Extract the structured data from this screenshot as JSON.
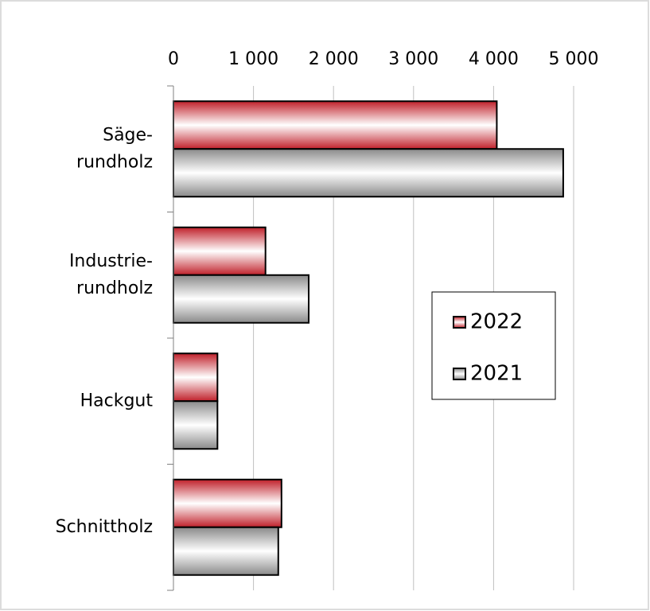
{
  "chart_data": {
    "type": "hbar",
    "categories": [
      "Säge-\nrundholz",
      "Industrie-\nrundholz",
      "Hackgut",
      "Schnittholz"
    ],
    "series": [
      {
        "name": "2022",
        "color": "#c0202a",
        "values": [
          4040,
          1150,
          550,
          1350
        ]
      },
      {
        "name": "2021",
        "color": "#8a8a8a",
        "values": [
          4870,
          1690,
          550,
          1310
        ]
      }
    ],
    "xlim": [
      0,
      5000
    ],
    "xticks": [
      0,
      {
        "value": 1000,
        "label": "1 000"
      },
      {
        "value": 2000,
        "label": "2 000"
      },
      {
        "value": 3000,
        "label": "3 000"
      },
      {
        "value": 4000,
        "label": "4 000"
      },
      {
        "value": 5000,
        "label": "5 000"
      }
    ],
    "grid": true,
    "legend": "right"
  }
}
